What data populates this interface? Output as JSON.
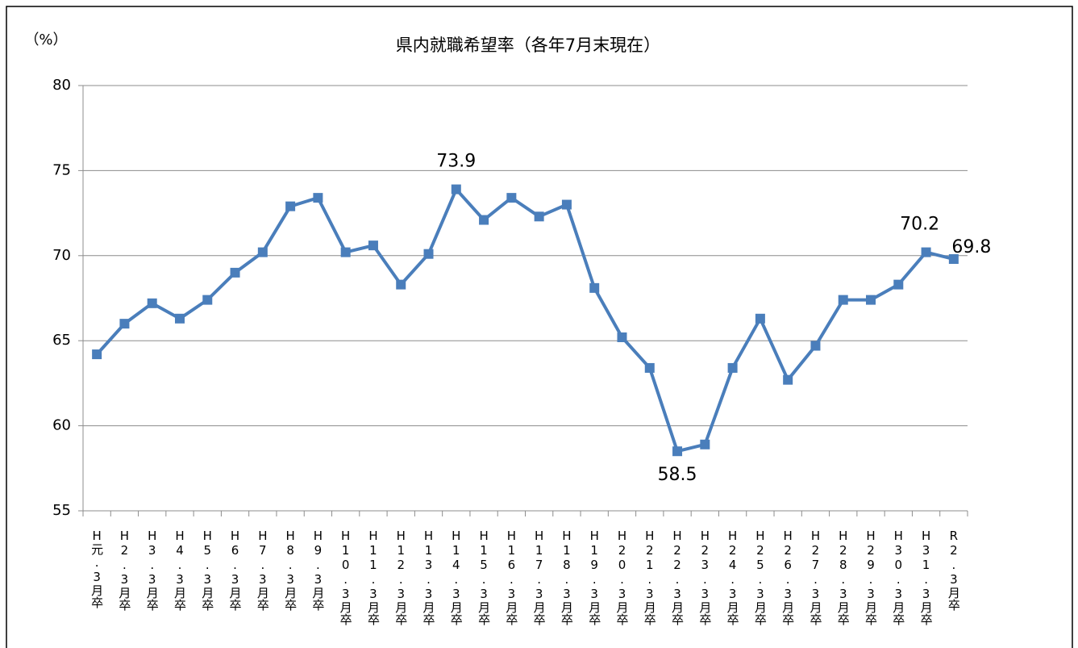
{
  "chart_data": {
    "type": "line",
    "title": "県内就職希望率（各年7月末現在）",
    "y_label": "（%）",
    "categories": [
      "H元.3月卒",
      "H2.3月卒",
      "H3.3月卒",
      "H4.3月卒",
      "H5.3月卒",
      "H6.3月卒",
      "H7.3月卒",
      "H8.3月卒",
      "H9.3月卒",
      "H10.3月卒",
      "H11.3月卒",
      "H12.3月卒",
      "H13.3月卒",
      "H14.3月卒",
      "H15.3月卒",
      "H16.3月卒",
      "H17.3月卒",
      "H18.3月卒",
      "H19.3月卒",
      "H20.3月卒",
      "H21.3月卒",
      "H22.3月卒",
      "H23.3月卒",
      "H24.3月卒",
      "H25.3月卒",
      "H26.3月卒",
      "H27.3月卒",
      "H28.3月卒",
      "H29.3月卒",
      "H30.3月卒",
      "H31.3月卒",
      "R2.3月卒"
    ],
    "values": [
      64.2,
      66.0,
      67.2,
      66.3,
      67.4,
      69.0,
      70.2,
      72.9,
      73.4,
      70.2,
      70.6,
      68.3,
      70.1,
      73.9,
      72.1,
      73.4,
      72.3,
      73.0,
      68.1,
      65.2,
      63.4,
      58.5,
      58.9,
      63.4,
      66.3,
      62.7,
      64.7,
      67.4,
      67.4,
      68.3,
      70.2,
      69.8
    ],
    "value_labels": [
      null,
      null,
      null,
      null,
      null,
      null,
      null,
      null,
      null,
      null,
      null,
      null,
      null,
      "73.9",
      null,
      null,
      null,
      null,
      null,
      null,
      null,
      "58.5",
      null,
      null,
      null,
      null,
      null,
      null,
      null,
      null,
      "70.2",
      "69.8"
    ],
    "color": "#4a7ebb",
    "ylim": [
      55,
      80
    ],
    "yticks": [
      55,
      60,
      65,
      70,
      75,
      80
    ],
    "grid": true
  }
}
